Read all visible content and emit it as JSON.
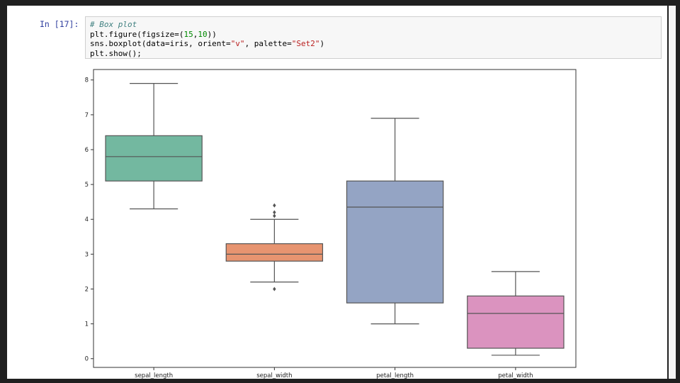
{
  "cell": {
    "prompt": "In [17]:",
    "code": {
      "line1": "# Box plot",
      "line2_pre": "plt.figure(figsize=(",
      "line2_num1": "15",
      "line2_mid": ",",
      "line2_num2": "10",
      "line2_post": "))",
      "line3_pre": "sns.boxplot(data=iris, orient=",
      "line3_str1": "\"v\"",
      "line3_mid": ", palette=",
      "line3_str2": "\"Set2\"",
      "line3_post": ")",
      "line4": "plt.show();"
    }
  },
  "chart_data": {
    "type": "box",
    "ylim": [
      -0.25,
      8.3
    ],
    "yticks": [
      0,
      1,
      2,
      3,
      4,
      5,
      6,
      7,
      8
    ],
    "categories": [
      "sepal_length",
      "sepal_width",
      "petal_length",
      "petal_width"
    ],
    "boxes": [
      {
        "name": "sepal_length",
        "whisker_low": 4.3,
        "q1": 5.1,
        "median": 5.8,
        "q3": 6.4,
        "whisker_high": 7.9,
        "outliers": [],
        "color": "#73b8a0"
      },
      {
        "name": "sepal_width",
        "whisker_low": 2.2,
        "q1": 2.8,
        "median": 3.0,
        "q3": 3.3,
        "whisker_high": 4.0,
        "outliers": [
          4.1,
          4.2,
          4.4,
          2.0
        ],
        "color": "#e79470"
      },
      {
        "name": "petal_length",
        "whisker_low": 1.0,
        "q1": 1.6,
        "median": 4.35,
        "q3": 5.1,
        "whisker_high": 6.9,
        "outliers": [],
        "color": "#94a4c4"
      },
      {
        "name": "petal_width",
        "whisker_low": 0.1,
        "q1": 0.3,
        "median": 1.3,
        "q3": 1.8,
        "whisker_high": 2.5,
        "outliers": [],
        "color": "#db93bf"
      }
    ],
    "grid": false,
    "edge_color": "#555555"
  }
}
